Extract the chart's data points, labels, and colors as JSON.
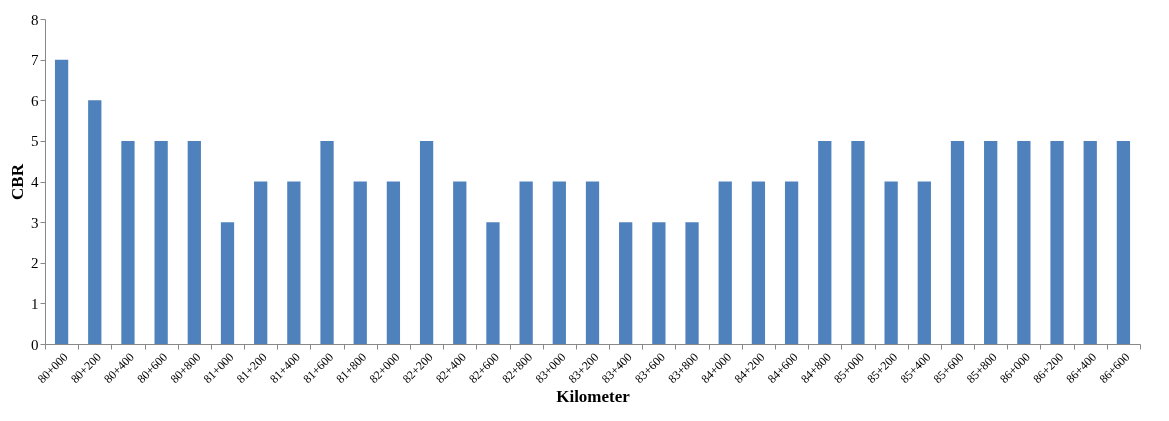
{
  "chart_data": {
    "type": "bar",
    "xlabel": "Kilometer",
    "ylabel": "CBR",
    "categories": [
      "80+000",
      "80+200",
      "80+400",
      "80+600",
      "80+800",
      "81+000",
      "81+200",
      "81+400",
      "81+600",
      "81+800",
      "82+000",
      "82+200",
      "82+400",
      "82+600",
      "82+800",
      "83+000",
      "83+200",
      "83+400",
      "83+600",
      "83+800",
      "84+000",
      "84+200",
      "84+600",
      "84+800",
      "85+000",
      "85+200",
      "85+400",
      "85+600",
      "85+800",
      "86+000",
      "86+200",
      "86+400",
      "86+600"
    ],
    "values": [
      7,
      6,
      5,
      5,
      5,
      3,
      4,
      4,
      5,
      4,
      4,
      5,
      4,
      3,
      4,
      4,
      4,
      3,
      3,
      3,
      4,
      4,
      4,
      5,
      5,
      4,
      4,
      5,
      5,
      5,
      5,
      5,
      5
    ],
    "color": "#4f81bd",
    "ylim": [
      0,
      8
    ],
    "yticks": [
      0,
      1,
      2,
      3,
      4,
      5,
      6,
      7,
      8
    ],
    "grid": false
  }
}
